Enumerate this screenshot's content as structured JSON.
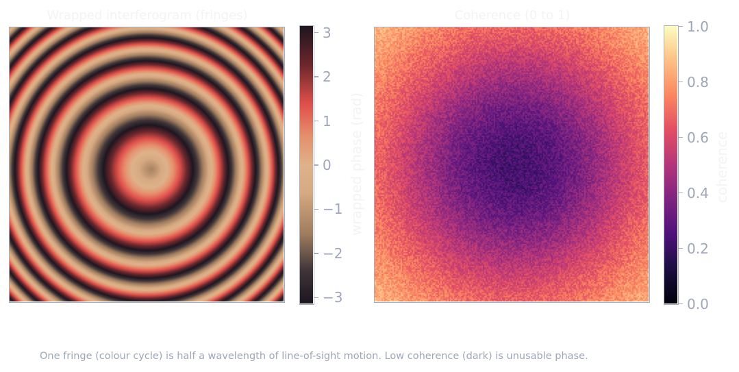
{
  "chart_data": [
    {
      "type": "heatmap",
      "title": "Wrapped interferogram (fringes)",
      "colorbar": {
        "label": "wrapped phase (rad)",
        "range": [
          -3.14159,
          3.14159
        ],
        "ticks": [
          3,
          2,
          1,
          0,
          -1,
          -2,
          -3
        ],
        "tick_labels": [
          "3",
          "2",
          "1",
          "0",
          "−1",
          "−2",
          "−3"
        ],
        "colormap": "cyclic-dark-copper-red"
      },
      "description_of_field": "concentric circular fringe pattern centred left of middle"
    },
    {
      "type": "heatmap",
      "title": "Coherence (0 to 1)",
      "colorbar": {
        "label": "coherence",
        "range": [
          0,
          1
        ],
        "ticks": [
          1.0,
          0.8,
          0.6,
          0.4,
          0.2,
          0.0
        ],
        "tick_labels": [
          "1.0",
          "0.8",
          "0.6",
          "0.4",
          "0.2",
          "0.0"
        ],
        "colormap": "magma"
      }
    }
  ],
  "caption": "One fringe (colour cycle) is half a wavelength of line-of-sight motion. Low coherence (dark) is unusable phase.",
  "colors": {
    "axis": "#a7adbd",
    "tick_text": "#9ea6ba",
    "title_text": "#f3f3f3"
  }
}
